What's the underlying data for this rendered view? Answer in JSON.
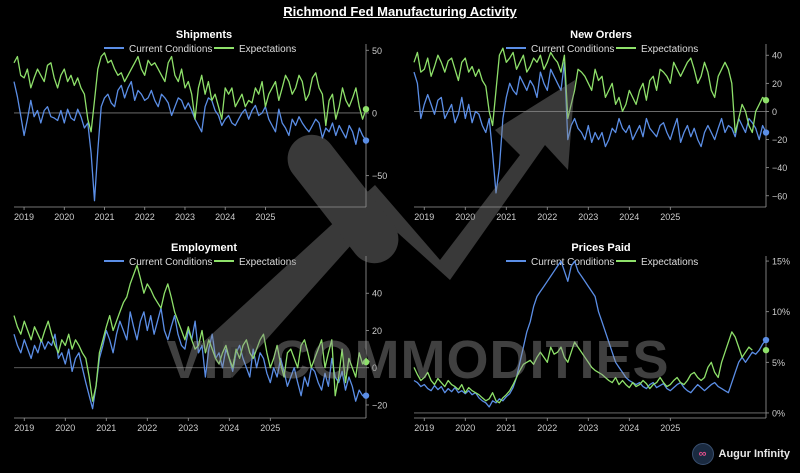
{
  "title": "Richmond Fed Manufacturing Activity",
  "watermark": {
    "text": "VIP COMMODITIES"
  },
  "brand": {
    "logo_icon": "augur-infinity-logo-icon",
    "label": "Augur Infinity"
  },
  "colors": {
    "current": "#5b8ee6",
    "expectations": "#8ee06a",
    "zero_line": "#7a7a7a",
    "axis": "#9a9a9a"
  },
  "chart_data": [
    {
      "type": "line",
      "title": "Shipments",
      "x_ticks": [
        "2019",
        "2020",
        "2021",
        "2022",
        "2023",
        "2024",
        "2025"
      ],
      "y_ticks": [
        {
          "v": 50,
          "label": "50"
        },
        {
          "v": 0,
          "label": "0"
        },
        {
          "v": -50,
          "label": "−50"
        }
      ],
      "ylim": [
        -75,
        55
      ],
      "legend": "top-center",
      "series": [
        {
          "name": "Current Conditions",
          "values": [
            25,
            13,
            -2,
            -18,
            -5,
            10,
            -3,
            2,
            -8,
            2,
            5,
            -3,
            -4,
            -6,
            2,
            -8,
            3,
            -4,
            -6,
            3,
            -3,
            -12,
            -8,
            -32,
            -70,
            -30,
            5,
            12,
            15,
            8,
            5,
            18,
            22,
            12,
            20,
            25,
            10,
            18,
            15,
            10,
            12,
            18,
            10,
            5,
            15,
            12,
            8,
            -2,
            5,
            12,
            10,
            3,
            8,
            2,
            -5,
            -10,
            -15,
            5,
            12,
            10,
            2,
            -2,
            -10,
            -5,
            -2,
            -8,
            -10,
            -5,
            0,
            3,
            -5,
            2,
            6,
            -2,
            0,
            5,
            -5,
            -10,
            -15,
            3,
            -8,
            -12,
            -18,
            -5,
            -10,
            -3,
            -8,
            -12,
            -15,
            -10,
            -5,
            -8,
            -20,
            -12,
            -15,
            -8,
            -18,
            -10,
            -15,
            -20,
            -10,
            -15,
            -25,
            -12,
            -18,
            -22
          ]
        },
        {
          "name": "Expectations",
          "values": [
            40,
            45,
            30,
            28,
            35,
            20,
            28,
            35,
            30,
            25,
            38,
            40,
            28,
            20,
            30,
            35,
            25,
            30,
            22,
            28,
            20,
            15,
            -5,
            -15,
            10,
            35,
            45,
            48,
            40,
            42,
            35,
            30,
            32,
            25,
            30,
            35,
            40,
            45,
            35,
            30,
            42,
            38,
            40,
            35,
            30,
            25,
            40,
            45,
            30,
            25,
            35,
            20,
            25,
            15,
            -5,
            20,
            30,
            15,
            25,
            10,
            15,
            5,
            -5,
            20,
            15,
            20,
            5,
            10,
            15,
            5,
            10,
            8,
            20,
            15,
            25,
            5,
            15,
            20,
            25,
            10,
            20,
            30,
            25,
            15,
            20,
            30,
            25,
            10,
            15,
            28,
            32,
            20,
            15,
            -10,
            10,
            15,
            -5,
            5,
            20,
            10,
            5,
            12,
            20,
            5,
            -5,
            3
          ]
        }
      ]
    },
    {
      "type": "line",
      "title": "New Orders",
      "x_ticks": [
        "2019",
        "2020",
        "2021",
        "2022",
        "2023",
        "2024",
        "2025"
      ],
      "y_ticks": [
        {
          "v": 40,
          "label": "40"
        },
        {
          "v": 20,
          "label": "20"
        },
        {
          "v": 0,
          "label": "0"
        },
        {
          "v": -20,
          "label": "−20"
        },
        {
          "v": -40,
          "label": "−40"
        },
        {
          "v": -60,
          "label": "−60"
        }
      ],
      "ylim": [
        -68,
        48
      ],
      "legend": "top-center",
      "series": [
        {
          "name": "Current Conditions",
          "values": [
            28,
            20,
            -5,
            5,
            12,
            5,
            -2,
            8,
            10,
            -5,
            0,
            5,
            -8,
            -2,
            10,
            -5,
            5,
            -8,
            0,
            -2,
            -10,
            -15,
            -5,
            -30,
            -58,
            -40,
            -5,
            10,
            20,
            15,
            12,
            25,
            20,
            15,
            22,
            18,
            10,
            28,
            20,
            15,
            30,
            25,
            20,
            15,
            35,
            -20,
            -10,
            -5,
            -12,
            -15,
            -20,
            -10,
            -22,
            -15,
            -20,
            -15,
            -25,
            -20,
            -12,
            -15,
            -5,
            -12,
            -15,
            -10,
            -20,
            -15,
            -10,
            -18,
            -5,
            -12,
            -15,
            -18,
            -10,
            -8,
            -15,
            -20,
            -12,
            -5,
            -22,
            -15,
            -10,
            -18,
            -12,
            -20,
            -25,
            -15,
            -10,
            -15,
            -20,
            -12,
            -5,
            -15,
            -10,
            -12,
            -18,
            -5,
            -10,
            -15,
            -5,
            -8,
            -12,
            -20,
            -10,
            -15
          ]
        },
        {
          "name": "Expectations",
          "values": [
            35,
            42,
            28,
            30,
            38,
            25,
            32,
            40,
            35,
            28,
            36,
            38,
            30,
            22,
            35,
            38,
            28,
            32,
            25,
            30,
            22,
            18,
            0,
            -10,
            15,
            40,
            45,
            35,
            38,
            42,
            30,
            35,
            40,
            28,
            32,
            38,
            35,
            40,
            30,
            35,
            42,
            38,
            35,
            28,
            40,
            -5,
            5,
            15,
            30,
            28,
            25,
            20,
            15,
            30,
            22,
            25,
            10,
            15,
            20,
            5,
            10,
            0,
            5,
            15,
            10,
            5,
            15,
            20,
            8,
            22,
            25,
            15,
            30,
            28,
            25,
            20,
            35,
            30,
            25,
            30,
            35,
            38,
            30,
            20,
            25,
            35,
            28,
            15,
            10,
            25,
            30,
            35,
            30,
            20,
            -15,
            -5,
            5,
            0,
            -10,
            -15,
            0,
            5,
            10,
            8
          ]
        }
      ]
    },
    {
      "type": "line",
      "title": "Employment",
      "x_ticks": [
        "2019",
        "2020",
        "2021",
        "2022",
        "2023",
        "2024",
        "2025"
      ],
      "y_ticks": [
        {
          "v": 40,
          "label": "40"
        },
        {
          "v": 20,
          "label": "20"
        },
        {
          "v": 0,
          "label": "0"
        },
        {
          "v": -20,
          "label": "−20"
        }
      ],
      "ylim": [
        -27,
        60
      ],
      "legend": "top-center",
      "series": [
        {
          "name": "Current Conditions",
          "values": [
            18,
            12,
            8,
            15,
            10,
            5,
            12,
            8,
            15,
            10,
            14,
            12,
            18,
            5,
            8,
            2,
            10,
            -2,
            5,
            8,
            0,
            -8,
            -15,
            -22,
            -10,
            5,
            12,
            20,
            15,
            8,
            18,
            25,
            20,
            15,
            30,
            22,
            15,
            25,
            30,
            20,
            28,
            18,
            25,
            32,
            20,
            15,
            22,
            28,
            18,
            12,
            10,
            20,
            15,
            25,
            8,
            12,
            -5,
            10,
            18,
            5,
            8,
            0,
            10,
            5,
            -2,
            8,
            12,
            5,
            0,
            -5,
            10,
            0,
            8,
            5,
            -3,
            -8,
            0,
            -5,
            5,
            -2,
            -10,
            -5,
            0,
            -8,
            -15,
            -5,
            -10,
            0,
            -2,
            -8,
            -12,
            -3,
            -10,
            5,
            -5,
            -8,
            -2,
            -12,
            -5,
            -10,
            -18,
            -12,
            -15,
            -15
          ]
        },
        {
          "name": "Expectations",
          "values": [
            28,
            22,
            18,
            25,
            20,
            15,
            22,
            18,
            14,
            20,
            25,
            18,
            12,
            8,
            15,
            12,
            18,
            10,
            15,
            12,
            8,
            5,
            -5,
            -18,
            -10,
            8,
            15,
            22,
            28,
            20,
            25,
            30,
            35,
            38,
            45,
            50,
            55,
            48,
            40,
            45,
            42,
            38,
            35,
            32,
            40,
            45,
            38,
            30,
            25,
            20,
            15,
            22,
            15,
            10,
            12,
            20,
            8,
            15,
            10,
            5,
            2,
            8,
            12,
            5,
            0,
            10,
            5,
            12,
            15,
            8,
            5,
            10,
            15,
            18,
            8,
            0,
            5,
            12,
            2,
            -5,
            8,
            10,
            5,
            0,
            12,
            15,
            8,
            0,
            5,
            10,
            15,
            0,
            8,
            15,
            -15,
            -5,
            10,
            -8,
            5,
            0,
            -5,
            8,
            2,
            5,
            3
          ]
        }
      ]
    },
    {
      "type": "line",
      "title": "Prices Paid",
      "x_ticks": [
        "2019",
        "2020",
        "2021",
        "2022",
        "2023",
        "2024",
        "2025"
      ],
      "y_ticks": [
        {
          "v": 15,
          "label": "15%"
        },
        {
          "v": 10,
          "label": "10%"
        },
        {
          "v": 5,
          "label": "5%"
        },
        {
          "v": 0,
          "label": "0%"
        }
      ],
      "ylim": [
        -0.5,
        15.5
      ],
      "legend": "top-center",
      "series": [
        {
          "name": "Current Conditions",
          "values": [
            3.2,
            3.0,
            2.6,
            2.8,
            2.4,
            2.2,
            2.7,
            2.3,
            2.6,
            2.0,
            2.4,
            2.1,
            2.5,
            2.0,
            2.2,
            1.9,
            2.2,
            1.8,
            2.0,
            1.5,
            1.2,
            1.0,
            0.6,
            1.2,
            1.0,
            1.4,
            1.2,
            1.6,
            1.9,
            2.5,
            3.5,
            5.0,
            6.5,
            8.0,
            9.0,
            10.5,
            11.5,
            12.0,
            12.5,
            13.0,
            13.5,
            14.0,
            14.5,
            15.0,
            14.0,
            13.0,
            14.5,
            15.0,
            14.0,
            13.5,
            13.0,
            12.5,
            12.0,
            11.5,
            10.0,
            9.0,
            8.0,
            7.0,
            6.0,
            5.0,
            4.5,
            4.0,
            3.5,
            3.2,
            3.0,
            2.8,
            3.0,
            2.6,
            2.4,
            2.8,
            3.0,
            2.5,
            2.7,
            2.9,
            2.4,
            2.2,
            2.5,
            2.8,
            3.0,
            2.5,
            2.2,
            2.0,
            2.4,
            2.8,
            2.5,
            2.2,
            2.5,
            2.8,
            3.0,
            2.6,
            2.4,
            2.2,
            2.0,
            3.0,
            4.0,
            5.0,
            5.5,
            5.0,
            5.5,
            6.0,
            5.8,
            6.2,
            6.8,
            7.2
          ]
        },
        {
          "name": "Expectations",
          "values": [
            4.5,
            3.8,
            3.2,
            3.5,
            4.0,
            3.2,
            2.8,
            3.4,
            3.0,
            2.6,
            3.2,
            2.8,
            2.6,
            2.3,
            2.8,
            2.0,
            2.5,
            2.2,
            2.0,
            1.8,
            1.5,
            1.2,
            1.4,
            2.0,
            1.2,
            1.0,
            1.5,
            1.8,
            2.2,
            2.8,
            3.5,
            4.2,
            4.8,
            5.0,
            5.2,
            4.8,
            5.5,
            6.0,
            5.5,
            5.0,
            6.5,
            5.8,
            6.0,
            6.5,
            5.5,
            5.0,
            6.0,
            7.0,
            6.5,
            6.0,
            5.5,
            5.0,
            4.5,
            4.2,
            4.0,
            3.8,
            3.5,
            3.2,
            3.0,
            3.5,
            2.8,
            3.2,
            2.8,
            2.5,
            3.0,
            2.6,
            2.8,
            3.2,
            2.9,
            2.4,
            2.8,
            3.0,
            3.5,
            3.0,
            2.6,
            2.8,
            3.2,
            3.5,
            3.0,
            2.8,
            3.2,
            3.8,
            4.0,
            3.5,
            3.2,
            3.5,
            4.5,
            5.0,
            4.0,
            3.5,
            5.0,
            6.0,
            7.0,
            8.0,
            7.5,
            6.5,
            5.5,
            6.0,
            6.5,
            6.2
          ]
        }
      ]
    }
  ]
}
